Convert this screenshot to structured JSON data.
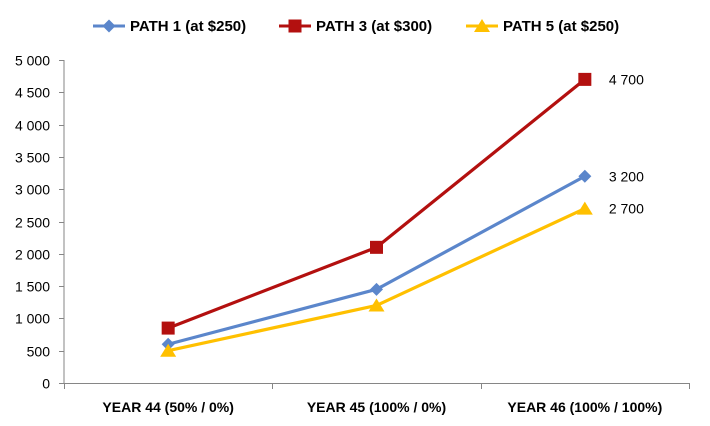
{
  "chart_data": {
    "type": "line",
    "title": "",
    "xlabel": "",
    "ylabel": "",
    "categories": [
      "YEAR 44 (50% / 0%)",
      "YEAR 45  (100% / 0%)",
      "YEAR 46  (100% / 100%)"
    ],
    "ylim": [
      0,
      5000
    ],
    "y_ticks": [
      0,
      500,
      1000,
      1500,
      2000,
      2500,
      3000,
      3500,
      4000,
      4500,
      5000
    ],
    "y_tick_labels": [
      "0",
      "500",
      "1 000",
      "1 500",
      "2 000",
      "2 500",
      "3 000",
      "3 500",
      "4 000",
      "4 500",
      "5 000"
    ],
    "grid": false,
    "legend_position": "top",
    "series": [
      {
        "name": "PATH 1 (at $250)",
        "values": [
          600,
          1450,
          3200
        ],
        "color": "#5B86CB",
        "marker": "diamond",
        "end_label": "3 200"
      },
      {
        "name": "PATH 3 (at $300)",
        "values": [
          850,
          2100,
          4700
        ],
        "color": "#B3100F",
        "marker": "square",
        "end_label": "4 700"
      },
      {
        "name": "PATH 5 (at $250)",
        "values": [
          500,
          1200,
          2700
        ],
        "color": "#FFC000",
        "marker": "triangle",
        "end_label": "2 700"
      }
    ]
  }
}
